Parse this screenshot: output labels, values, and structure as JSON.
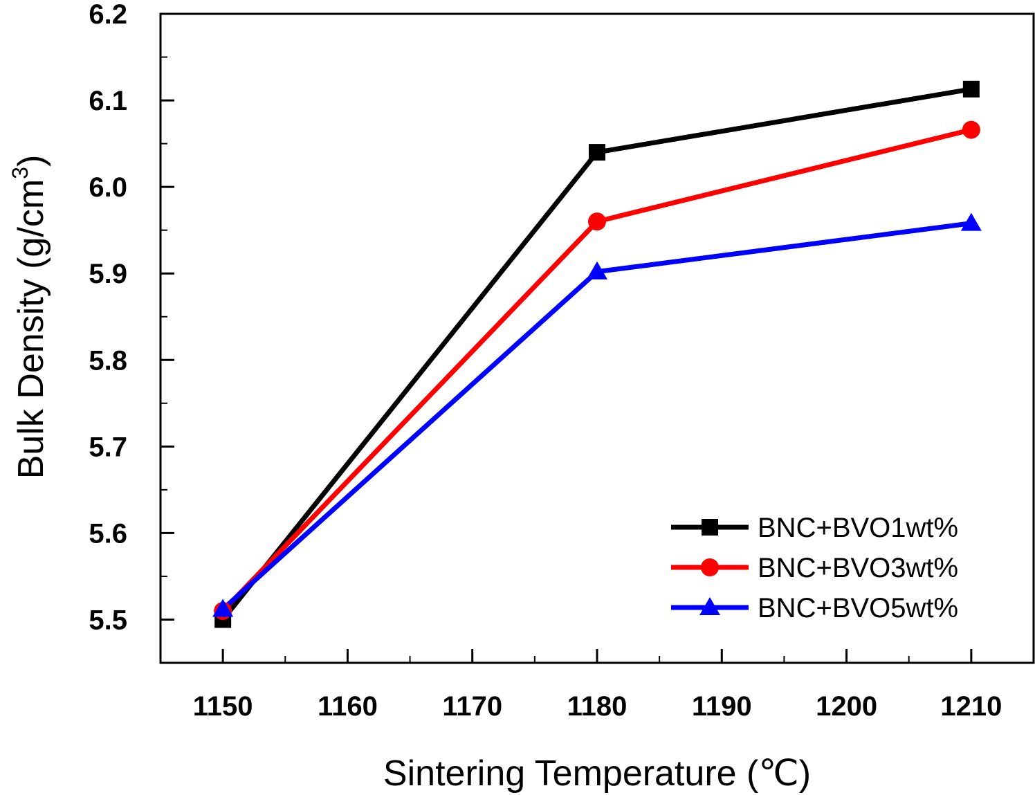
{
  "chart_data": {
    "type": "line",
    "xlabel": "Sintering Temperature (℃)",
    "ylabel_main": "Bulk Density (g/cm",
    "ylabel_sup": "3",
    "ylabel_close": ")",
    "xlim": [
      1145,
      1215
    ],
    "ylim": [
      5.45,
      6.2
    ],
    "xticks": [
      1150,
      1160,
      1170,
      1180,
      1190,
      1200,
      1210
    ],
    "xtick_labels": [
      "1150",
      "1160",
      "1170",
      "1180",
      "1190",
      "1200",
      "1210"
    ],
    "yticks": [
      5.5,
      5.6,
      5.7,
      5.8,
      5.9,
      6.0,
      6.1,
      6.2
    ],
    "ytick_labels": [
      "5.5",
      "5.6",
      "5.7",
      "5.8",
      "5.9",
      "6.0",
      "6.1",
      "6.2"
    ],
    "grid": false,
    "legend_position": "lower-right",
    "x": [
      1150,
      1180,
      1210
    ],
    "series": [
      {
        "name": "BNC+BVO1wt%",
        "values": [
          5.5,
          6.04,
          6.113
        ],
        "color": "#000000",
        "marker": "square"
      },
      {
        "name": "BNC+BVO3wt%",
        "values": [
          5.51,
          5.96,
          6.066
        ],
        "color": "#ff0000",
        "marker": "circle"
      },
      {
        "name": "BNC+BVO5wt%",
        "values": [
          5.512,
          5.902,
          5.958
        ],
        "color": "#0000ff",
        "marker": "triangle"
      }
    ]
  }
}
